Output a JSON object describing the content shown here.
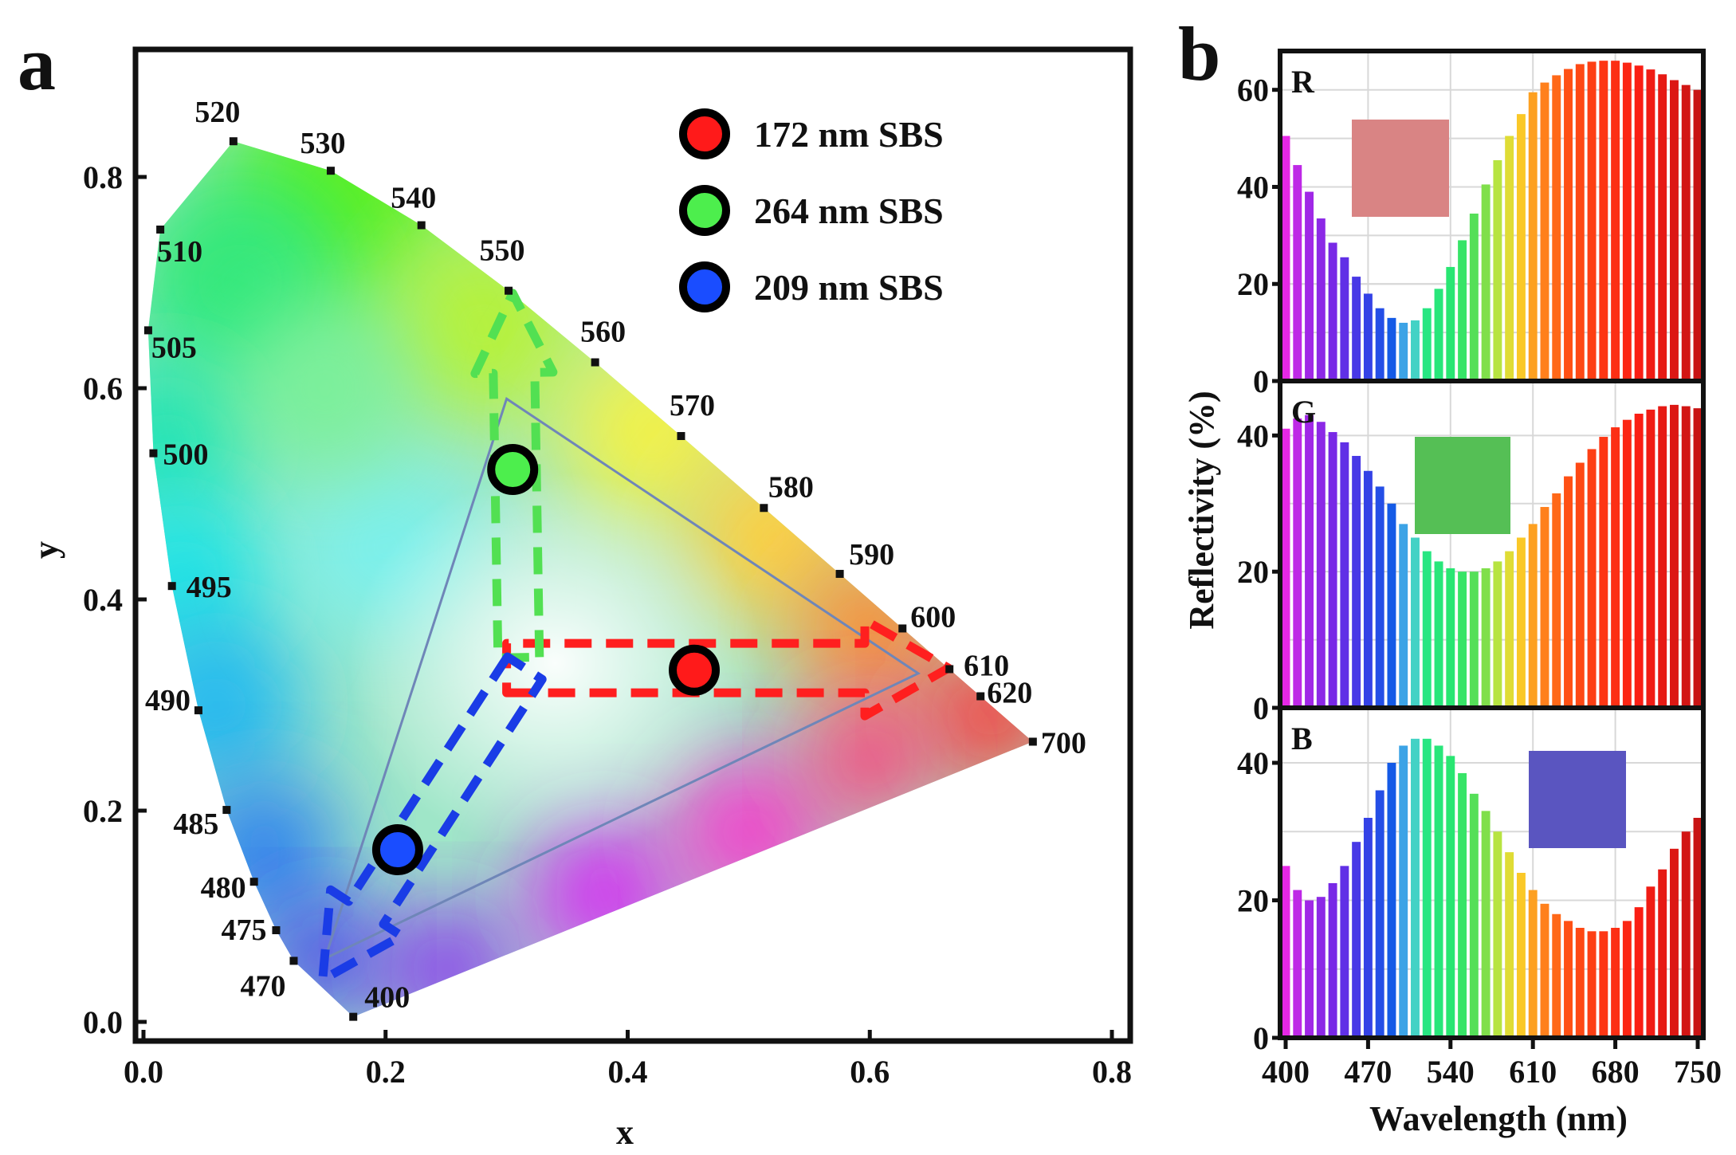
{
  "panels": {
    "a": {
      "letter": "a",
      "chart_data": {
        "type": "scatter",
        "title": "",
        "xlabel": "x",
        "ylabel": "y",
        "xlim": [
          0.0,
          0.8
        ],
        "ylim": [
          0.0,
          0.9
        ],
        "x_ticks": [
          "0.0",
          "0.2",
          "0.4",
          "0.6",
          "0.8"
        ],
        "y_ticks": [
          "0.0",
          "0.2",
          "0.4",
          "0.6",
          "0.8"
        ],
        "locus_points": [
          {
            "label": "400",
            "x": 0.1733,
            "y": 0.0048
          },
          {
            "label": "470",
            "x": 0.1241,
            "y": 0.0578
          },
          {
            "label": "475",
            "x": 0.1096,
            "y": 0.0868
          },
          {
            "label": "480",
            "x": 0.0913,
            "y": 0.1327
          },
          {
            "label": "485",
            "x": 0.0687,
            "y": 0.2007
          },
          {
            "label": "490",
            "x": 0.0454,
            "y": 0.295
          },
          {
            "label": "495",
            "x": 0.0235,
            "y": 0.4127
          },
          {
            "label": "500",
            "x": 0.0082,
            "y": 0.5384
          },
          {
            "label": "505",
            "x": 0.0039,
            "y": 0.6548
          },
          {
            "label": "510",
            "x": 0.0139,
            "y": 0.7502
          },
          {
            "label": "520",
            "x": 0.0743,
            "y": 0.8338
          },
          {
            "label": "530",
            "x": 0.1547,
            "y": 0.8059
          },
          {
            "label": "540",
            "x": 0.2296,
            "y": 0.7543
          },
          {
            "label": "550",
            "x": 0.3016,
            "y": 0.6923
          },
          {
            "label": "560",
            "x": 0.3731,
            "y": 0.6245
          },
          {
            "label": "570",
            "x": 0.4441,
            "y": 0.5547
          },
          {
            "label": "580",
            "x": 0.5125,
            "y": 0.4866
          },
          {
            "label": "590",
            "x": 0.5752,
            "y": 0.4242
          },
          {
            "label": "600",
            "x": 0.627,
            "y": 0.3725
          },
          {
            "label": "610",
            "x": 0.6658,
            "y": 0.334
          },
          {
            "label": "620",
            "x": 0.6915,
            "y": 0.3083
          },
          {
            "label": "700",
            "x": 0.7347,
            "y": 0.2653
          }
        ],
        "series": [
          {
            "name": "172 nm SBS",
            "color": "#ff1a1a",
            "x": 0.455,
            "y": 0.333
          },
          {
            "name": "264 nm SBS",
            "color": "#4dee4d",
            "x": 0.305,
            "y": 0.523
          },
          {
            "name": "209 nm SBS",
            "color": "#1a4dff",
            "x": 0.21,
            "y": 0.163
          }
        ],
        "gamut_triangle": [
          {
            "x": 0.3,
            "y": 0.59
          },
          {
            "x": 0.64,
            "y": 0.33
          },
          {
            "x": 0.15,
            "y": 0.06
          }
        ],
        "legend_position": "top-right"
      }
    },
    "b": {
      "letter": "b",
      "xlabel": "Wavelength (nm)",
      "ylabel": "Reflectivity (%)",
      "x_ticks": [
        "400",
        "470",
        "540",
        "610",
        "680",
        "750"
      ],
      "chart_data": [
        {
          "type": "bar",
          "label": "R",
          "swatch_color": "#d98484",
          "ylim": [
            0,
            68
          ],
          "y_ticks": [
            "0",
            "20",
            "40",
            "60"
          ],
          "x": [
            400,
            410,
            420,
            430,
            440,
            450,
            460,
            470,
            480,
            490,
            500,
            510,
            520,
            530,
            540,
            550,
            560,
            570,
            580,
            590,
            600,
            610,
            620,
            630,
            640,
            650,
            660,
            670,
            680,
            690,
            700,
            710,
            720,
            730,
            740,
            750
          ],
          "values": [
            50.5,
            44.5,
            39,
            33.5,
            28.5,
            25.5,
            21.5,
            18,
            15,
            13,
            12,
            12.5,
            15,
            19,
            23.5,
            29,
            34.5,
            40.5,
            45.5,
            50.5,
            55,
            59.5,
            61.5,
            63,
            64.3,
            65.3,
            65.8,
            66,
            66,
            65.6,
            65,
            64.2,
            63.2,
            62,
            61,
            60
          ]
        },
        {
          "type": "bar",
          "label": "G",
          "swatch_color": "#55bf55",
          "ylim": [
            0,
            48
          ],
          "y_ticks": [
            "0",
            "20",
            "40"
          ],
          "x": [
            400,
            410,
            420,
            430,
            440,
            450,
            460,
            470,
            480,
            490,
            500,
            510,
            520,
            530,
            540,
            550,
            560,
            570,
            580,
            590,
            600,
            610,
            620,
            630,
            640,
            650,
            660,
            670,
            680,
            690,
            700,
            710,
            720,
            730,
            740,
            750
          ],
          "values": [
            41,
            42.5,
            43,
            42,
            40.5,
            39,
            37,
            34.8,
            32.5,
            30,
            27,
            25,
            23,
            21.5,
            20.5,
            20,
            20,
            20.5,
            21.5,
            23,
            25,
            27,
            29.5,
            31.5,
            34,
            36,
            38,
            39.8,
            41.2,
            42.3,
            43.2,
            43.8,
            44.3,
            44.5,
            44.3,
            44
          ],
          "swatch_label": ""
        },
        {
          "type": "bar",
          "label": "B",
          "swatch_color": "#5a55c0",
          "ylim": [
            0,
            48
          ],
          "y_ticks": [
            "0",
            "20",
            "40"
          ],
          "x": [
            400,
            410,
            420,
            430,
            440,
            450,
            460,
            470,
            480,
            490,
            500,
            510,
            520,
            530,
            540,
            550,
            560,
            570,
            580,
            590,
            600,
            610,
            620,
            630,
            640,
            650,
            660,
            670,
            680,
            690,
            700,
            710,
            720,
            730,
            740,
            750
          ],
          "values": [
            25,
            21.5,
            20,
            20.5,
            22.5,
            25,
            28.5,
            32,
            36,
            40,
            42.5,
            43.5,
            43.5,
            42.5,
            41,
            38.5,
            35.5,
            33,
            30,
            27,
            24,
            21.5,
            19.5,
            18,
            17,
            16,
            15.5,
            15.5,
            16,
            17,
            19,
            22,
            24.5,
            27.5,
            30,
            32
          ]
        }
      ]
    }
  }
}
